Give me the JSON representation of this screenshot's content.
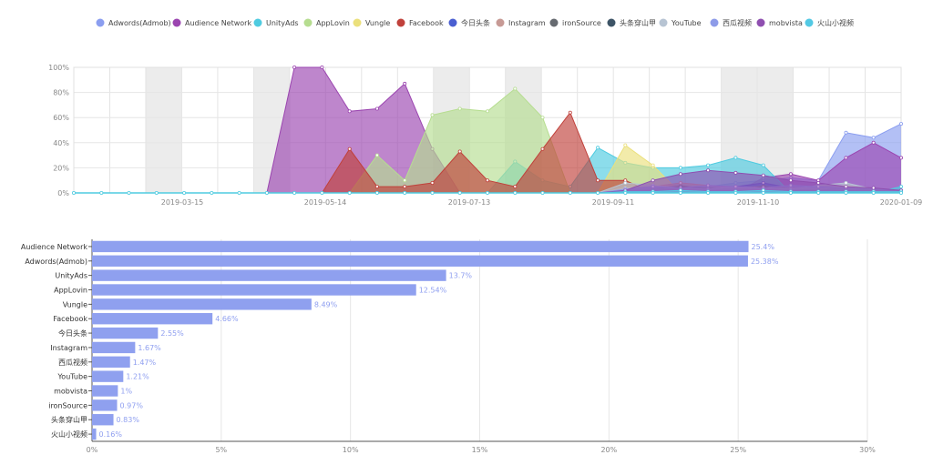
{
  "chart_data": [
    {
      "type": "area",
      "legend_position": "top",
      "x_tick_labels": [
        "2019-03-15",
        "2019-05-14",
        "2019-07-13",
        "2019-09-11",
        "2019-11-10",
        "2020-01-09"
      ],
      "y_ticks": [
        "0%",
        "20%",
        "40%",
        "60%",
        "80%",
        "100%"
      ],
      "ylim": [
        0,
        100
      ],
      "series": [
        {
          "name": "Adwords(Admob)",
          "color": "#8b9ef0",
          "values": [
            0,
            0,
            0,
            0,
            0,
            0,
            0,
            0,
            0,
            0,
            0,
            0,
            0,
            0,
            0,
            0,
            0,
            0,
            0,
            0,
            0,
            0,
            0,
            5,
            8,
            10,
            12,
            10,
            48,
            44,
            55
          ]
        },
        {
          "name": "Audience Network",
          "color": "#9b45b0",
          "values": [
            0,
            0,
            0,
            0,
            0,
            0,
            0,
            0,
            100,
            100,
            65,
            67,
            87,
            35,
            0,
            0,
            0,
            0,
            0,
            0,
            0,
            0,
            0,
            0,
            0,
            12,
            15,
            10,
            28,
            40,
            28
          ]
        },
        {
          "name": "UnityAds",
          "color": "#4fcbe0",
          "values": [
            0,
            0,
            0,
            0,
            0,
            0,
            0,
            0,
            0,
            0,
            0,
            0,
            0,
            0,
            0,
            0,
            25,
            10,
            5,
            36,
            24,
            20,
            20,
            22,
            28,
            22,
            0,
            0,
            0,
            0,
            5
          ]
        },
        {
          "name": "AppLovin",
          "color": "#b6dd90",
          "values": [
            0,
            0,
            0,
            0,
            0,
            0,
            0,
            0,
            0,
            0,
            0,
            30,
            10,
            62,
            67,
            65,
            83,
            60,
            0,
            0,
            0,
            0,
            0,
            0,
            0,
            0,
            0,
            0,
            0,
            0,
            0
          ]
        },
        {
          "name": "Vungle",
          "color": "#ebe07c",
          "values": [
            0,
            0,
            0,
            0,
            0,
            0,
            0,
            0,
            0,
            0,
            0,
            0,
            0,
            0,
            0,
            0,
            0,
            0,
            0,
            0,
            38,
            22,
            0,
            0,
            0,
            0,
            0,
            0,
            0,
            0,
            0
          ]
        },
        {
          "name": "Facebook",
          "color": "#c0413b",
          "values": [
            0,
            0,
            0,
            0,
            0,
            0,
            0,
            0,
            0,
            0,
            35,
            5,
            5,
            8,
            33,
            10,
            5,
            35,
            64,
            10,
            10,
            0,
            0,
            0,
            0,
            0,
            0,
            0,
            0,
            0,
            0
          ]
        },
        {
          "name": "今日头条",
          "color": "#4a5fd1",
          "values": [
            0,
            0,
            0,
            0,
            0,
            0,
            0,
            0,
            0,
            0,
            0,
            0,
            0,
            0,
            0,
            0,
            0,
            0,
            0,
            0,
            0,
            4,
            6,
            3,
            5,
            8,
            4,
            2,
            3,
            2,
            1
          ]
        },
        {
          "name": "Instagram",
          "color": "#c79a95",
          "values": [
            0,
            0,
            0,
            0,
            0,
            0,
            0,
            0,
            0,
            0,
            0,
            0,
            0,
            0,
            0,
            0,
            0,
            0,
            0,
            0,
            4,
            5,
            8,
            6,
            4,
            5,
            4,
            3,
            6,
            3,
            2
          ]
        },
        {
          "name": "ironSource",
          "color": "#666a70",
          "values": [
            0,
            0,
            0,
            0,
            0,
            0,
            0,
            0,
            0,
            0,
            0,
            0,
            0,
            0,
            0,
            0,
            0,
            0,
            0,
            0,
            2,
            3,
            5,
            4,
            3,
            5,
            3,
            2,
            4,
            2,
            1
          ]
        },
        {
          "name": "头条穿山甲",
          "color": "#3d5466",
          "values": [
            0,
            0,
            0,
            0,
            0,
            0,
            0,
            0,
            0,
            0,
            0,
            0,
            0,
            0,
            0,
            0,
            0,
            0,
            0,
            0,
            1,
            2,
            3,
            2,
            2,
            3,
            2,
            1,
            2,
            1,
            1
          ]
        },
        {
          "name": "YouTube",
          "color": "#b7c4d3",
          "values": [
            0,
            0,
            0,
            0,
            0,
            0,
            0,
            0,
            0,
            0,
            0,
            0,
            0,
            0,
            0,
            0,
            0,
            0,
            0,
            0,
            8,
            6,
            4,
            3,
            5,
            4,
            3,
            6,
            8,
            3,
            2
          ]
        },
        {
          "name": "西瓜视频",
          "color": "#8d9be8",
          "values": [
            0,
            0,
            0,
            0,
            0,
            0,
            0,
            0,
            0,
            0,
            0,
            0,
            0,
            0,
            0,
            0,
            0,
            0,
            0,
            0,
            3,
            5,
            4,
            6,
            5,
            4,
            6,
            5,
            4,
            3,
            2
          ]
        },
        {
          "name": "mobvista",
          "color": "#8f4fb0",
          "values": [
            0,
            0,
            0,
            0,
            0,
            0,
            0,
            0,
            0,
            0,
            0,
            0,
            0,
            0,
            0,
            0,
            0,
            0,
            0,
            0,
            2,
            10,
            15,
            18,
            16,
            14,
            10,
            8,
            5,
            4,
            2
          ]
        },
        {
          "name": "火山小视频",
          "color": "#53c9e4",
          "values": [
            0,
            0,
            0,
            0,
            0,
            0,
            0,
            0,
            0,
            0,
            0,
            0,
            0,
            0,
            0,
            0,
            0,
            0,
            0,
            0,
            1,
            1,
            2,
            1,
            1,
            2,
            1,
            1,
            1,
            1,
            1
          ]
        }
      ]
    },
    {
      "type": "bar",
      "orientation": "horizontal",
      "color": "#8fa0ef",
      "xlim": [
        0,
        30
      ],
      "x_ticks": [
        "0%",
        "5%",
        "10%",
        "15%",
        "20%",
        "25%",
        "30%"
      ],
      "categories": [
        "Audience Network",
        "Adwords(Admob)",
        "UnityAds",
        "AppLovin",
        "Vungle",
        "Facebook",
        "今日头条",
        "Instagram",
        "西瓜视频",
        "YouTube",
        "mobvista",
        "ironSource",
        "头条穿山甲",
        "火山小视频"
      ],
      "values": [
        25.4,
        25.38,
        13.7,
        12.54,
        8.49,
        4.66,
        2.55,
        1.67,
        1.47,
        1.21,
        1,
        0.97,
        0.83,
        0.16
      ],
      "value_labels": [
        "25.4%",
        "25.38%",
        "13.7%",
        "12.54%",
        "8.49%",
        "4.66%",
        "2.55%",
        "1.67%",
        "1.47%",
        "1.21%",
        "1%",
        "0.97%",
        "0.83%",
        "0.16%"
      ]
    }
  ]
}
